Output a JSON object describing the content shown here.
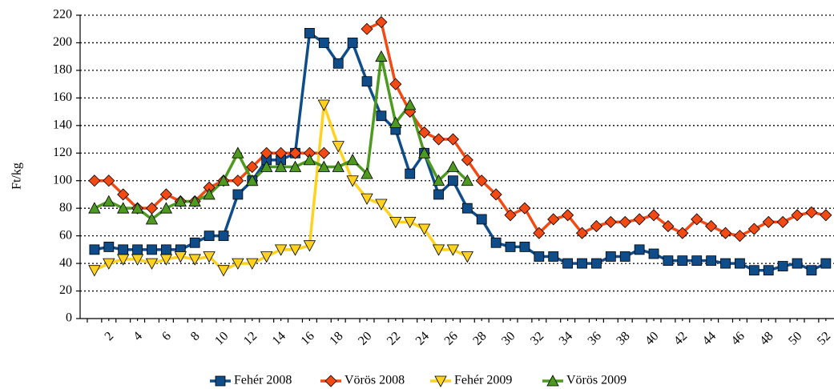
{
  "chart_data": {
    "type": "line",
    "y_label": "Ft/kg",
    "x": [
      1,
      2,
      3,
      4,
      5,
      6,
      7,
      8,
      9,
      10,
      11,
      12,
      13,
      14,
      15,
      16,
      17,
      18,
      19,
      20,
      21,
      22,
      23,
      24,
      25,
      26,
      27,
      28,
      29,
      30,
      31,
      32,
      33,
      34,
      35,
      36,
      37,
      38,
      39,
      40,
      41,
      42,
      43,
      44,
      45,
      46,
      47,
      48,
      49,
      50,
      51,
      52
    ],
    "xlim": [
      0,
      52.4
    ],
    "xticks": [
      2,
      4,
      6,
      8,
      10,
      12,
      14,
      16,
      18,
      20,
      22,
      24,
      26,
      28,
      30,
      32,
      34,
      36,
      38,
      40,
      42,
      44,
      46,
      48,
      50,
      52
    ],
    "ylim": [
      0,
      220
    ],
    "yticks": [
      0,
      20,
      40,
      60,
      80,
      100,
      120,
      140,
      160,
      180,
      200,
      220
    ],
    "grid": true,
    "legend": "bottom",
    "series": [
      {
        "name": "Fehér 2008",
        "color": "#0f4c8a",
        "marker": "square",
        "values": [
          50,
          52,
          50,
          50,
          50,
          50,
          50,
          55,
          60,
          60,
          90,
          100,
          115,
          115,
          120,
          207,
          200,
          185,
          200,
          172,
          147,
          137,
          105,
          120,
          90,
          100,
          80,
          72,
          55,
          52,
          52,
          45,
          45,
          40,
          40,
          40,
          45,
          45,
          50,
          47,
          42,
          42,
          42,
          42,
          40,
          40,
          35,
          35,
          38,
          40,
          35,
          40
        ]
      },
      {
        "name": "Vörös 2008",
        "color": "#f24a12",
        "marker": "diamond",
        "values": [
          100,
          100,
          90,
          80,
          80,
          90,
          85,
          85,
          95,
          100,
          100,
          110,
          120,
          120,
          120,
          120,
          120,
          null,
          null,
          210,
          215,
          170,
          150,
          135,
          130,
          130,
          115,
          100,
          90,
          75,
          80,
          62,
          72,
          75,
          62,
          67,
          70,
          70,
          72,
          75,
          67,
          62,
          72,
          67,
          62,
          60,
          65,
          70,
          70,
          75,
          77,
          75
        ]
      },
      {
        "name": "Fehér 2009",
        "color": "#ffd21f",
        "marker": "triangle-down",
        "values": [
          35,
          40,
          43,
          43,
          40,
          43,
          45,
          43,
          45,
          35,
          40,
          40,
          45,
          50,
          50,
          53,
          155,
          125,
          100,
          87,
          83,
          70,
          70,
          65,
          50,
          50,
          45,
          null,
          null,
          null,
          null,
          null,
          null,
          null,
          null,
          null,
          null,
          null,
          null,
          null,
          null,
          null,
          null,
          null,
          null,
          null,
          null,
          null,
          null,
          null,
          null,
          null
        ]
      },
      {
        "name": "Vörös 2009",
        "color": "#4e9a1e",
        "marker": "triangle-up",
        "values": [
          80,
          85,
          80,
          80,
          72,
          80,
          85,
          85,
          90,
          100,
          120,
          100,
          110,
          110,
          110,
          115,
          110,
          110,
          115,
          105,
          190,
          142,
          155,
          120,
          100,
          110,
          100,
          null,
          null,
          null,
          null,
          null,
          null,
          null,
          null,
          null,
          null,
          null,
          null,
          null,
          null,
          null,
          null,
          null,
          null,
          null,
          null,
          null,
          null,
          null,
          null,
          null
        ]
      }
    ]
  }
}
